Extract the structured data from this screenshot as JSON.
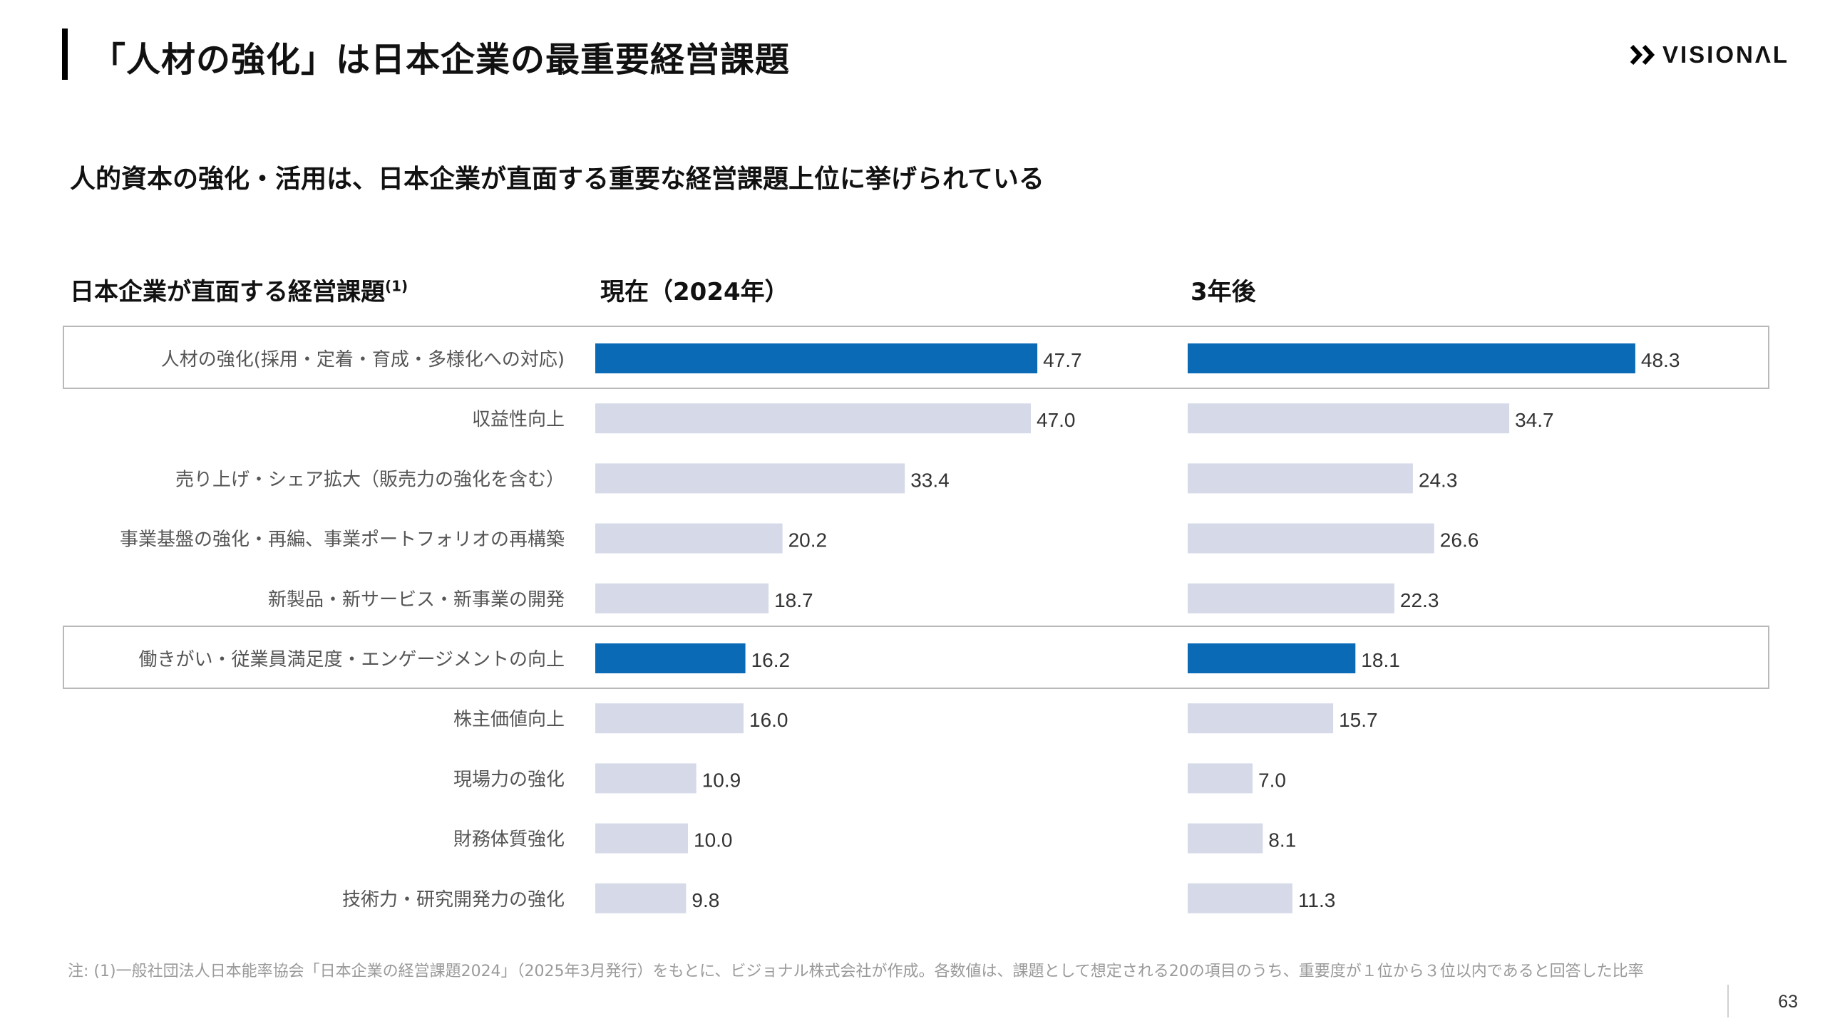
{
  "header": {
    "title": "「人材の強化」は日本企業の最重要経営課題",
    "logo_text": "VISIONΛL"
  },
  "subtitle": "人的資本の強化・活用は、日本企業が直面する重要な経営課題上位に挙げられている",
  "columns": {
    "category_header": "日本企業が直面する経営課題",
    "category_header_sup": "(1)",
    "current_header": "現在（2024年）",
    "future_header": "3年後"
  },
  "chart_data": {
    "type": "bar",
    "orientation": "horizontal",
    "categories": [
      "人材の強化(採用・定着・育成・多様化への対応)",
      "収益性向上",
      "売り上げ・シェア拡大（販売力の強化を含む）",
      "事業基盤の強化・再編、事業ポートフォリオの再構築",
      "新製品・新サービス・新事業の開発",
      "働きがい・従業員満足度・エンゲージメントの向上",
      "株主価値向上",
      "現場力の強化",
      "財務体質強化",
      "技術力・研究開発力の強化"
    ],
    "series": [
      {
        "name": "現在（2024年）",
        "values": [
          47.7,
          47.0,
          33.4,
          20.2,
          18.7,
          16.2,
          16.0,
          10.9,
          10.0,
          9.8
        ]
      },
      {
        "name": "3年後",
        "values": [
          48.3,
          34.7,
          24.3,
          26.6,
          22.3,
          18.1,
          15.7,
          7.0,
          8.1,
          11.3
        ]
      }
    ],
    "highlighted": [
      0,
      5
    ],
    "colors": {
      "highlight": "#0a6ab6",
      "default": "#d6dae8",
      "outline": "#b9b9b9"
    },
    "value_labels": "shown",
    "grid": false
  },
  "footer": {
    "note": "注: (1)一般社団法人日本能率協会「日本企業の経営課題2024」（2025年3月発行）をもとに、ビジョナル株式会社が作成。各数値は、課題として想定される20の項目のうち、重要度が１位から３位以内であると回答した比率",
    "page_number": "63"
  }
}
